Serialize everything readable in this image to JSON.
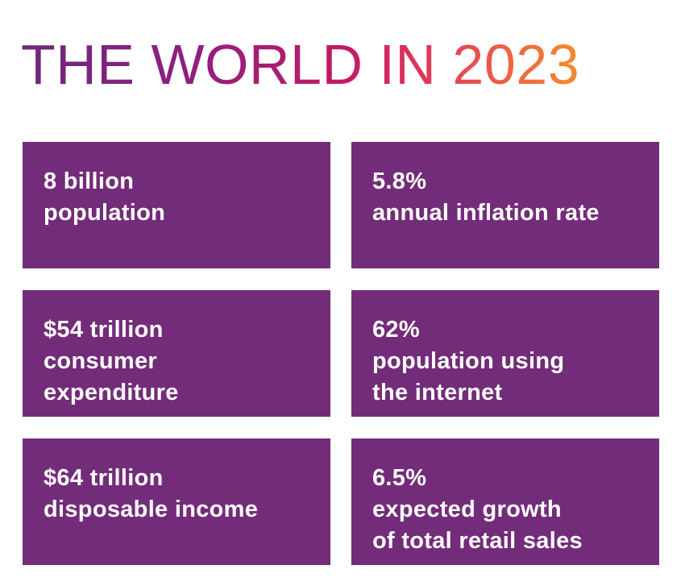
{
  "title": "THE WORLD IN 2023",
  "colors": {
    "tile_background": "#732c79",
    "title_gradient": [
      "#6a2a79",
      "#8f1f80",
      "#c21a63",
      "#e23b5a",
      "#f58a2e"
    ],
    "tile_text": "#ffffff"
  },
  "stats": [
    {
      "value": "8 billion",
      "lines": [
        "population"
      ]
    },
    {
      "value": "5.8%",
      "lines": [
        "annual inflation rate"
      ]
    },
    {
      "value": "$54 trillion",
      "lines": [
        "consumer",
        "expenditure"
      ]
    },
    {
      "value": "62%",
      "lines": [
        "population using",
        "the internet"
      ]
    },
    {
      "value": "$64 trillion",
      "lines": [
        "disposable income"
      ]
    },
    {
      "value": "6.5%",
      "lines": [
        "expected growth",
        "of total retail sales"
      ]
    }
  ]
}
